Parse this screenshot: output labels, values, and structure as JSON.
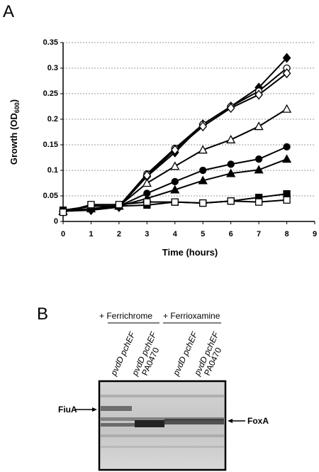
{
  "panel_labels": [
    "A",
    "B"
  ],
  "chart_data": {
    "type": "line",
    "xlabel": "Time (hours)",
    "ylabel": [
      "Growth (OD",
      "600",
      ")"
    ],
    "x": [
      0,
      1,
      2,
      3,
      4,
      5,
      6,
      7,
      8
    ],
    "xlim": [
      0,
      9
    ],
    "xticks": [
      0,
      1,
      2,
      3,
      4,
      5,
      6,
      7,
      8,
      9
    ],
    "ylim": [
      0,
      0.35
    ],
    "yticks": [
      0,
      0.05,
      0.1,
      0.15,
      0.2,
      0.25,
      0.3,
      0.35
    ],
    "grid": true,
    "series": [
      {
        "marker": "diamond",
        "filled": true,
        "color": "#000000",
        "values": [
          0.02,
          0.022,
          0.028,
          0.088,
          0.135,
          0.19,
          0.225,
          0.262,
          0.32
        ]
      },
      {
        "marker": "circle",
        "filled": false,
        "color": "#000000",
        "values": [
          0.02,
          0.03,
          0.03,
          0.093,
          0.143,
          0.19,
          0.225,
          0.255,
          0.3
        ]
      },
      {
        "marker": "diamond",
        "filled": false,
        "color": "#000000",
        "values": [
          0.02,
          0.03,
          0.03,
          0.09,
          0.14,
          0.186,
          0.222,
          0.248,
          0.29
        ]
      },
      {
        "marker": "triangle",
        "filled": false,
        "color": "#000000",
        "values": [
          0.02,
          0.03,
          0.03,
          0.075,
          0.108,
          0.14,
          0.16,
          0.186,
          0.22
        ]
      },
      {
        "marker": "circle",
        "filled": true,
        "color": "#000000",
        "values": [
          0.02,
          0.025,
          0.03,
          0.055,
          0.078,
          0.1,
          0.112,
          0.122,
          0.146
        ]
      },
      {
        "marker": "triangle",
        "filled": true,
        "color": "#000000",
        "values": [
          0.02,
          0.025,
          0.03,
          0.045,
          0.062,
          0.08,
          0.094,
          0.101,
          0.122
        ]
      },
      {
        "marker": "square",
        "filled": true,
        "color": "#000000",
        "values": [
          0.022,
          0.03,
          0.03,
          0.032,
          0.038,
          0.036,
          0.04,
          0.047,
          0.054
        ]
      },
      {
        "marker": "square",
        "filled": false,
        "color": "#000000",
        "values": [
          0.018,
          0.033,
          0.033,
          0.038,
          0.038,
          0.036,
          0.04,
          0.038,
          0.042
        ]
      }
    ]
  },
  "gel": {
    "groups": [
      "+ Ferrichrome",
      "+ Ferrioxamine"
    ],
    "lanes": [
      [
        "pvdD pchEF"
      ],
      [
        "pvdD pchEF",
        "PA0470"
      ],
      [
        "pvdD pchEF"
      ],
      [
        "pvdD pchEF",
        "PA0470"
      ]
    ],
    "bands": [
      "FiuA",
      "FoxA"
    ]
  }
}
